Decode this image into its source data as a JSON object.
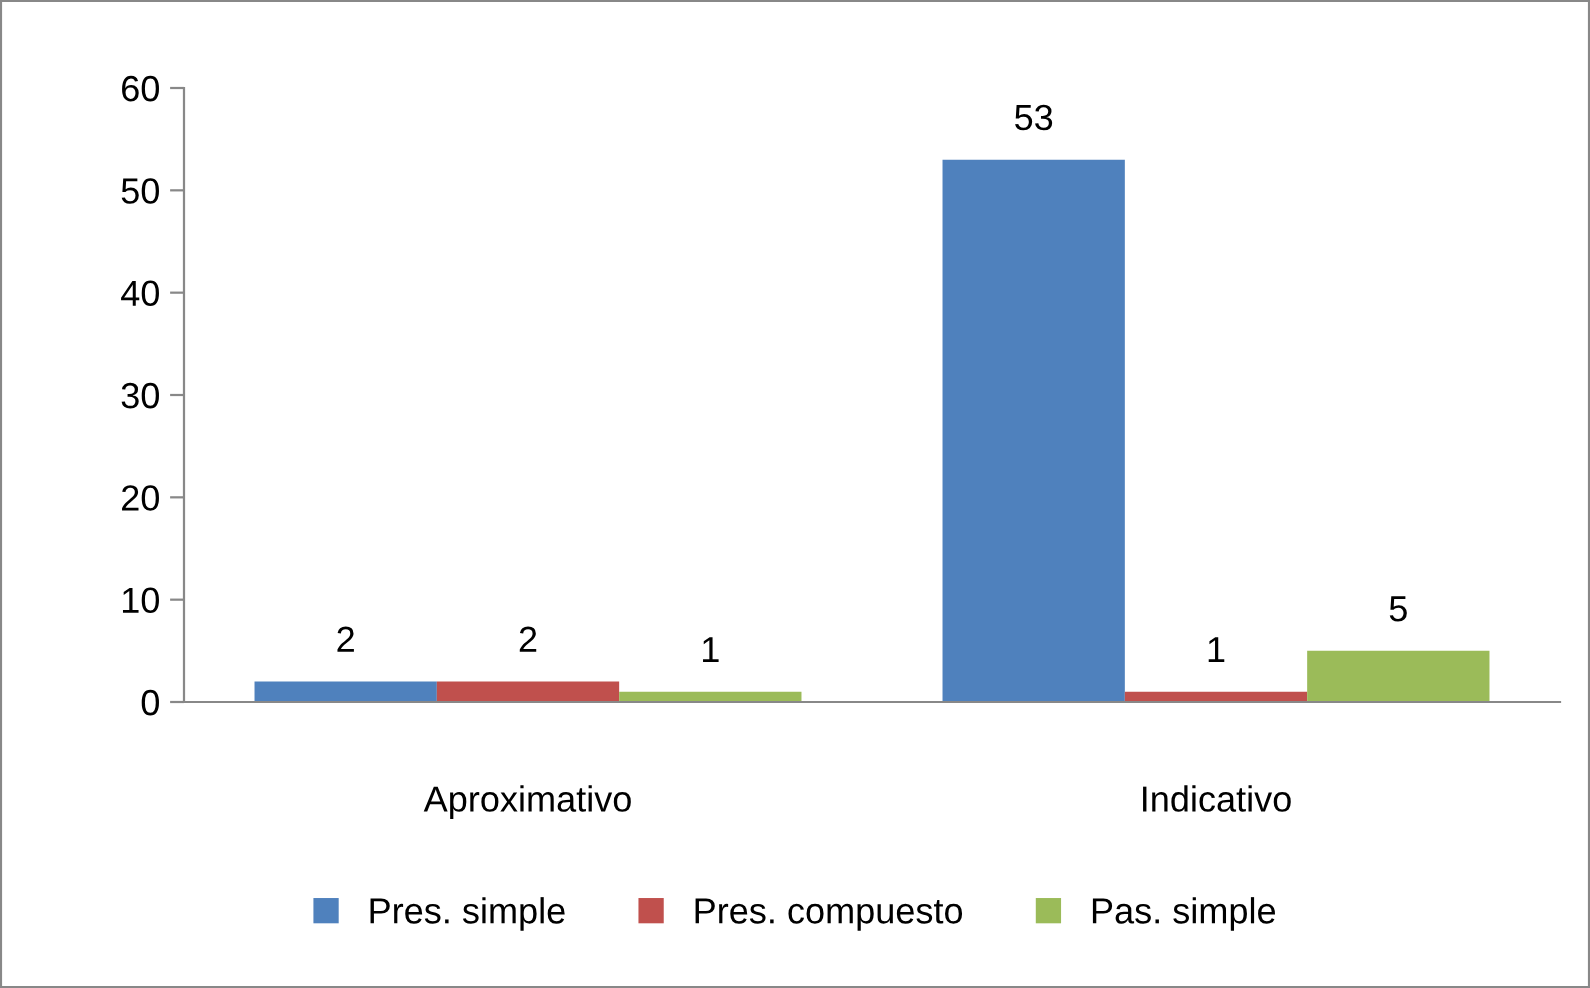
{
  "chart_data": {
    "type": "bar",
    "categories": [
      "Aproximativo",
      "Indicativo"
    ],
    "series": [
      {
        "name": "Pres. simple",
        "color": "#4f81bd",
        "values": [
          2,
          53
        ]
      },
      {
        "name": "Pres. compuesto",
        "color": "#c0504d",
        "values": [
          2,
          1
        ]
      },
      {
        "name": "Pas. simple",
        "color": "#9bbb59",
        "values": [
          1,
          5
        ]
      }
    ],
    "ylim": [
      0,
      60
    ],
    "yticks": [
      0,
      10,
      20,
      30,
      40,
      50,
      60
    ],
    "data_labels": true,
    "legend": "bottom",
    "grid": false
  }
}
